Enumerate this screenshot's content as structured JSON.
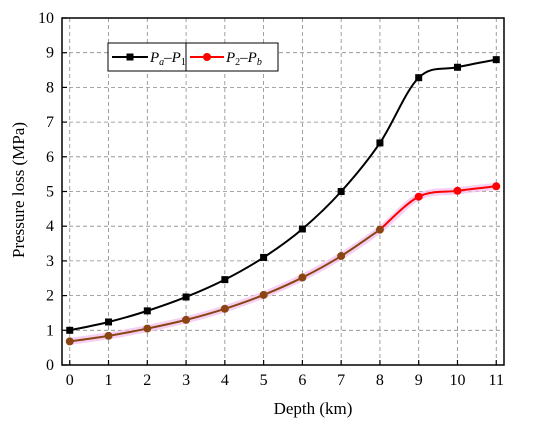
{
  "chart_data": {
    "type": "line",
    "xlabel": "Depth (km)",
    "ylabel": "Pressure loss (MPa)",
    "xlim": [
      -0.2,
      11.2
    ],
    "ylim": [
      0,
      10
    ],
    "x_ticks": [
      0,
      1,
      2,
      3,
      4,
      5,
      6,
      7,
      8,
      9,
      10,
      11
    ],
    "y_ticks": [
      0,
      1,
      2,
      3,
      4,
      5,
      6,
      7,
      8,
      9,
      10
    ],
    "grid": true,
    "legend_position": "top-left",
    "series": [
      {
        "name": "Pa–P1",
        "legend_main_1": "P",
        "legend_sub_1": "a",
        "legend_dash": "–",
        "legend_main_2": "P",
        "legend_sub_2": "1",
        "color": "#000000",
        "marker": "square",
        "x": [
          0,
          1,
          2,
          3,
          4,
          5,
          6,
          7,
          8,
          9,
          10,
          11
        ],
        "y": [
          1.0,
          1.24,
          1.56,
          1.96,
          2.46,
          3.1,
          3.92,
          5.0,
          6.4,
          8.28,
          8.58,
          8.8
        ]
      },
      {
        "name": "P2–Pb",
        "legend_main_1": "P",
        "legend_sub_1": "2",
        "legend_dash": "–",
        "legend_main_2": "P",
        "legend_sub_2": "b",
        "color": "#ff0000",
        "overlap_color": "#8b4513",
        "marker": "circle",
        "x": [
          0,
          1,
          2,
          3,
          4,
          5,
          6,
          7,
          8,
          9,
          10,
          11
        ],
        "y": [
          0.68,
          0.84,
          1.05,
          1.3,
          1.62,
          2.02,
          2.52,
          3.14,
          3.9,
          4.85,
          5.02,
          5.15
        ]
      }
    ]
  }
}
